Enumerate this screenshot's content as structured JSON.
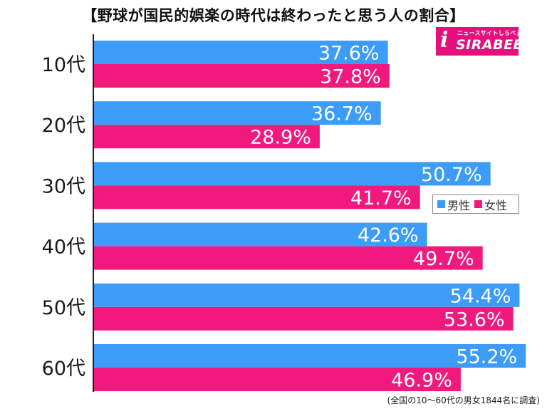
{
  "title": "【野球が国民的娯楽の時代は終わったと思う人の割合】",
  "logo": {
    "icon": "i",
    "tagline": "ニュースサイトしらべぇ",
    "text": "SIRABEE"
  },
  "source": "(全国の10〜60代の男女1844名に調査)",
  "legend": {
    "male": "男性",
    "female": "女性"
  },
  "colors": {
    "male": "#3c9cf8",
    "female": "#f2197e",
    "axis": "#222222",
    "logo": "#e4107d"
  },
  "chart_data": {
    "type": "bar",
    "orientation": "horizontal",
    "title": "【野球が国民的娯楽の時代は終わったと思う人の割合】",
    "categories": [
      "10代",
      "20代",
      "30代",
      "40代",
      "50代",
      "60代"
    ],
    "series": [
      {
        "name": "男性",
        "values": [
          37.6,
          36.7,
          50.7,
          42.6,
          54.4,
          55.2
        ],
        "labels": [
          "37.6%",
          "36.7%",
          "50.7%",
          "42.6%",
          "54.4%",
          "55.2%"
        ]
      },
      {
        "name": "女性",
        "values": [
          37.8,
          28.9,
          41.7,
          49.7,
          53.6,
          46.9
        ],
        "labels": [
          "37.8%",
          "28.9%",
          "41.7%",
          "49.7%",
          "53.6%",
          "46.9%"
        ]
      }
    ],
    "xlim": [
      0,
      60
    ],
    "grid": false,
    "legend_position": "right-middle"
  }
}
